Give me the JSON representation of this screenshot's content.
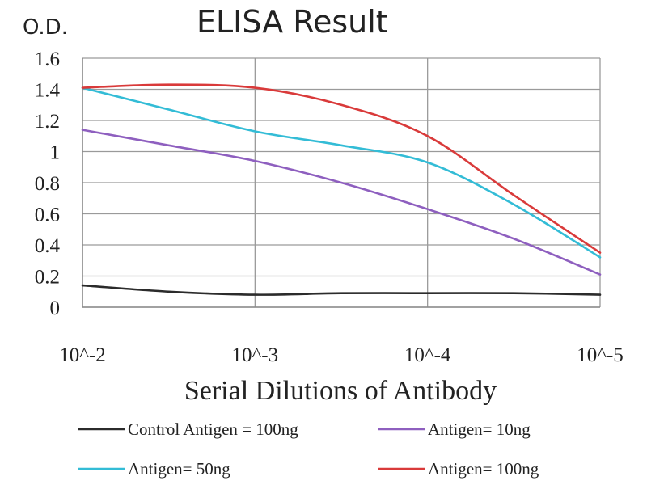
{
  "chart_data": {
    "type": "line",
    "title": "ELISA Result",
    "ylabel": "O.D.",
    "xlabel": "Serial Dilutions of Antibody",
    "categories": [
      "10^-2",
      "10^-3",
      "10^-4",
      "10^-5"
    ],
    "x": [
      -2,
      -2.5,
      -3,
      -3.5,
      -4,
      -4.5,
      -5
    ],
    "ylim": [
      0,
      1.6
    ],
    "yticks": [
      "0",
      "0.2",
      "0.4",
      "0.6",
      "0.8",
      "1",
      "1.2",
      "1.4",
      "1.6"
    ],
    "grid": true,
    "legend_position": "bottom",
    "series": [
      {
        "name": "Control Antigen = 100ng",
        "color": "#2b2b2b",
        "values": [
          0.14,
          0.1,
          0.08,
          0.09,
          0.09,
          0.09,
          0.08
        ]
      },
      {
        "name": "Antigen= 10ng",
        "color": "#8e5fbf",
        "values": [
          1.14,
          1.04,
          0.94,
          0.8,
          0.63,
          0.44,
          0.21
        ]
      },
      {
        "name": "Antigen= 50ng",
        "color": "#33bcd6",
        "values": [
          1.41,
          1.27,
          1.13,
          1.04,
          0.93,
          0.66,
          0.32
        ]
      },
      {
        "name": "Antigen= 100ng",
        "color": "#d93a3a",
        "values": [
          1.41,
          1.43,
          1.41,
          1.3,
          1.1,
          0.72,
          0.35
        ]
      }
    ]
  }
}
